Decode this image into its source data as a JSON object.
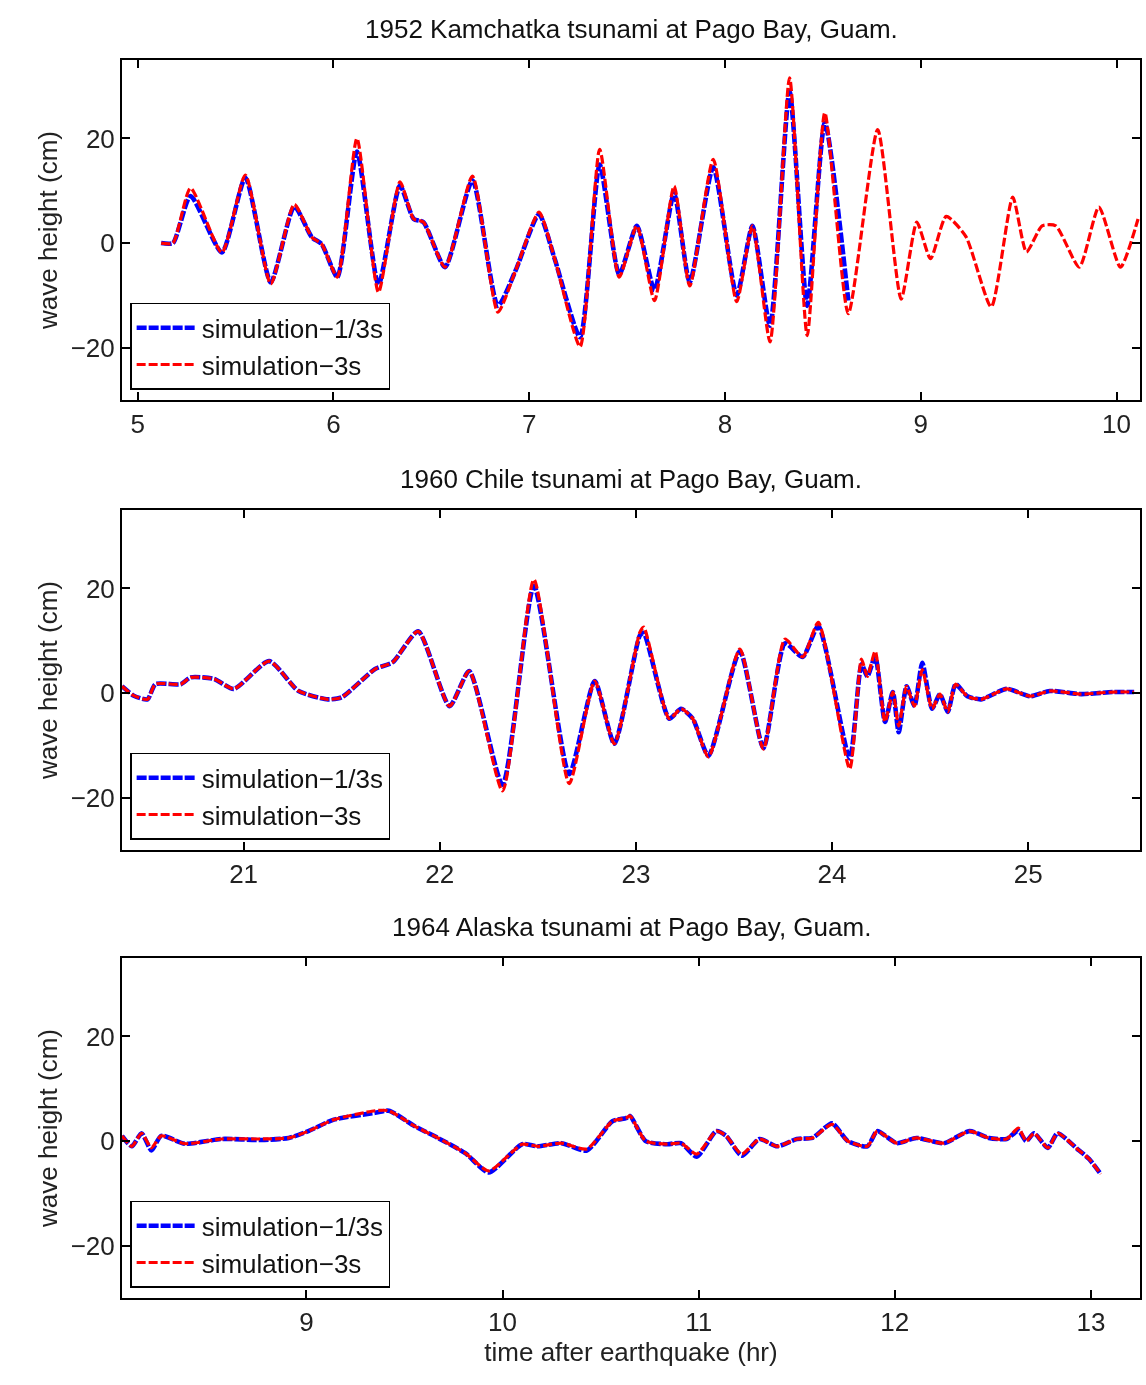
{
  "chart_data": [
    {
      "type": "line",
      "title": "1952 Kamchatka tsunami at Pago Bay, Guam.",
      "ylabel": "wave height (cm)",
      "xlim": [
        4.92,
        10.12
      ],
      "xticks": [
        5,
        6,
        7,
        8,
        9,
        10
      ],
      "ylim": [
        -30,
        35
      ],
      "yticks": [
        -20,
        0,
        20
      ],
      "legend": "bottom left",
      "line_style": "dashed",
      "marker": "none",
      "series": [
        {
          "name": "simulation−1/3s",
          "color": "#0000ff",
          "x": [
            5.12,
            5.18,
            5.27,
            5.43,
            5.55,
            5.68,
            5.8,
            5.89,
            5.94,
            6.02,
            6.12,
            6.23,
            6.34,
            6.41,
            6.46,
            6.57,
            6.71,
            6.84,
            6.93,
            7.05,
            7.13,
            7.26,
            7.36,
            7.46,
            7.55,
            7.64,
            7.74,
            7.82,
            7.94,
            8.06,
            8.14,
            8.23,
            8.33,
            8.42,
            8.51,
            8.63
          ],
          "values": [
            0,
            0,
            9,
            -1.8,
            12.5,
            -7.5,
            7,
            1.1,
            -0.2,
            -6.5,
            17.5,
            -8,
            11,
            4.6,
            4,
            -4.6,
            12,
            -12,
            -5.3,
            5.5,
            -3,
            -18,
            15,
            -6,
            3.3,
            -9,
            9.5,
            -7.5,
            14.5,
            -10,
            3.3,
            -15.8,
            29,
            -12,
            23,
            -11
          ]
        },
        {
          "name": "simulation−3s",
          "color": "#ff0000",
          "x": [
            5.12,
            5.18,
            5.27,
            5.43,
            5.55,
            5.68,
            5.8,
            5.89,
            5.94,
            6.02,
            6.12,
            6.23,
            6.34,
            6.41,
            6.46,
            6.57,
            6.71,
            6.84,
            6.93,
            7.05,
            7.13,
            7.26,
            7.36,
            7.46,
            7.55,
            7.64,
            7.74,
            7.82,
            7.94,
            8.06,
            8.14,
            8.23,
            8.33,
            8.42,
            8.51,
            8.63,
            8.78,
            8.9,
            8.98,
            9.05,
            9.13,
            9.23,
            9.36,
            9.47,
            9.54,
            9.62,
            9.69,
            9.81,
            9.91,
            10.02,
            10.11
          ],
          "values": [
            0,
            0,
            10.5,
            -1.8,
            13,
            -7.8,
            7.4,
            1.1,
            -0.2,
            -6.5,
            20,
            -9.4,
            11.7,
            4.6,
            4,
            -4.6,
            12.8,
            -13.2,
            -5.3,
            5.9,
            -3,
            -19.8,
            17.9,
            -6.5,
            3.3,
            -11,
            10.9,
            -8.2,
            16,
            -11.2,
            3.3,
            -18.9,
            31.6,
            -17.7,
            24.9,
            -13.5,
            21.7,
            -10.7,
            4,
            -3,
            5.1,
            1.3,
            -12.2,
            8.8,
            -1.7,
            3.3,
            3.3,
            -4.6,
            6.9,
            -4.6,
            4.6
          ]
        }
      ]
    },
    {
      "type": "line",
      "title": "1960 Chile tsunami at Pago Bay, Guam.",
      "ylabel": "wave height (cm)",
      "xlim": [
        20.38,
        25.57
      ],
      "xticks": [
        21,
        22,
        23,
        24,
        25
      ],
      "ylim": [
        -30,
        35
      ],
      "yticks": [
        -20,
        0,
        20
      ],
      "legend": "bottom left",
      "line_style": "dashed",
      "marker": "none",
      "series": [
        {
          "name": "simulation−1/3s",
          "color": "#0000ff",
          "x": [
            20.38,
            20.44,
            20.51,
            20.55,
            20.68,
            20.73,
            20.85,
            20.95,
            21.13,
            21.28,
            21.43,
            21.5,
            21.67,
            21.76,
            21.89,
            22.05,
            22.15,
            22.32,
            22.48,
            22.66,
            22.79,
            22.89,
            23.02,
            23.04,
            23.17,
            23.23,
            23.29,
            23.37,
            23.53,
            23.65,
            23.76,
            23.85,
            23.93,
            24.09,
            24.15,
            24.18,
            24.22,
            24.27,
            24.31,
            24.34,
            24.38,
            24.42,
            24.46,
            24.51,
            24.55,
            24.59,
            24.63,
            24.69,
            24.76,
            24.89,
            25.01,
            25.11,
            25.27,
            25.43,
            25.54
          ],
          "values": [
            1.3,
            -0.5,
            -1.2,
            1.7,
            1.7,
            3,
            2.7,
            0.8,
            6.1,
            0.4,
            -1.2,
            -0.8,
            4.6,
            5.9,
            11.8,
            -2.5,
            4.2,
            -17.5,
            20.5,
            -15.5,
            2.3,
            -9.7,
            11,
            11.5,
            -4.9,
            -3,
            -4.9,
            -12,
            8,
            -10.5,
            9.5,
            6.9,
            12.8,
            -12.5,
            5.5,
            3.2,
            7,
            -5.5,
            0.2,
            -7.5,
            1.3,
            -2.5,
            5.8,
            -3,
            -0.2,
            -3.6,
            1.7,
            -0.6,
            -1.2,
            0.8,
            -0.6,
            0.4,
            -0.2,
            0.2,
            0.2
          ]
        },
        {
          "name": "simulation−3s",
          "color": "#ff0000",
          "x": [
            20.38,
            20.44,
            20.51,
            20.55,
            20.68,
            20.73,
            20.85,
            20.95,
            21.13,
            21.28,
            21.43,
            21.5,
            21.67,
            21.76,
            21.89,
            22.05,
            22.15,
            22.32,
            22.48,
            22.66,
            22.79,
            22.89,
            23.02,
            23.04,
            23.17,
            23.23,
            23.29,
            23.37,
            23.53,
            23.65,
            23.76,
            23.85,
            23.93,
            24.09,
            24.15,
            24.18,
            24.22,
            24.27,
            24.31,
            24.34,
            24.38,
            24.42,
            24.46,
            24.51,
            24.55,
            24.59,
            24.63,
            24.69,
            24.76,
            24.89,
            25.01,
            25.11,
            25.27,
            25.43,
            25.54
          ],
          "values": [
            1.3,
            -0.5,
            -1.2,
            1.7,
            1.7,
            3,
            2.7,
            0.8,
            6.1,
            0.4,
            -1.2,
            -0.8,
            4.6,
            5.9,
            11.8,
            -2.5,
            4.2,
            -18.7,
            21.7,
            -17.3,
            2.3,
            -9.7,
            11.6,
            12.6,
            -4.9,
            -3,
            -4.9,
            -12.2,
            8.4,
            -10.7,
            10.3,
            6.9,
            13.5,
            -14.5,
            6.5,
            3.2,
            8,
            -5.5,
            0.2,
            -6.3,
            1.3,
            -2.5,
            4.5,
            -3,
            -0.2,
            -3.6,
            1.7,
            -0.6,
            -1.2,
            0.8,
            -0.6,
            0.4,
            -0.2,
            0.2,
            0.2
          ]
        }
      ]
    },
    {
      "type": "line",
      "title": "1964 Alaska tsunami at Pago Bay, Guam.",
      "xlabel": "time after earthquake (hr)",
      "ylabel": "wave height (cm)",
      "xlim": [
        8.06,
        13.25
      ],
      "xticks": [
        9,
        10,
        11,
        12,
        13
      ],
      "ylim": [
        -30,
        35
      ],
      "yticks": [
        -20,
        0,
        20
      ],
      "legend": "bottom left",
      "line_style": "dashed",
      "marker": "none",
      "series": [
        {
          "name": "simulation−1/3s",
          "color": "#0000ff",
          "x": [
            8.06,
            8.11,
            8.16,
            8.21,
            8.26,
            8.38,
            8.57,
            8.77,
            8.91,
            9.01,
            9.14,
            9.35,
            9.42,
            9.55,
            9.67,
            9.81,
            9.93,
            10.1,
            10.18,
            10.3,
            10.43,
            10.56,
            10.63,
            10.65,
            10.73,
            10.84,
            10.91,
            10.99,
            11.09,
            11.14,
            11.22,
            11.31,
            11.4,
            11.5,
            11.58,
            11.68,
            11.76,
            11.86,
            11.91,
            12.01,
            12.11,
            12.25,
            12.38,
            12.48,
            12.57,
            12.63,
            12.67,
            12.71,
            12.78,
            12.83,
            12.93,
            12.99,
            13.05
          ],
          "values": [
            1,
            -1,
            1.5,
            -1.8,
            1,
            -0.5,
            0.4,
            0.2,
            0.6,
            1.9,
            4.1,
            5.4,
            5.8,
            2.9,
            0.6,
            -2.3,
            -6,
            -0.6,
            -1,
            -0.4,
            -1.8,
            3.8,
            4.4,
            4.8,
            0,
            -0.6,
            -0.4,
            -3,
            1.9,
            1,
            -2.8,
            0.4,
            -1,
            0.4,
            0.6,
            3.4,
            0,
            -1,
            1.9,
            -0.4,
            0.6,
            -0.4,
            1.9,
            0.6,
            0.4,
            2,
            0,
            1.5,
            -1.3,
            1.5,
            -1.5,
            -3.4,
            -6.3
          ]
        },
        {
          "name": "simulation−3s",
          "color": "#ff0000",
          "x": [
            8.06,
            8.11,
            8.16,
            8.21,
            8.26,
            8.38,
            8.57,
            8.77,
            8.91,
            9.01,
            9.14,
            9.35,
            9.42,
            9.55,
            9.67,
            9.81,
            9.93,
            10.1,
            10.18,
            10.3,
            10.43,
            10.56,
            10.63,
            10.65,
            10.73,
            10.84,
            10.91,
            10.99,
            11.09,
            11.14,
            11.22,
            11.31,
            11.4,
            11.5,
            11.58,
            11.68,
            11.76,
            11.86,
            11.91,
            12.01,
            12.11,
            12.25,
            12.38,
            12.48,
            12.57,
            12.63,
            12.67,
            12.71,
            12.78,
            12.83,
            12.93,
            12.99,
            13.05
          ],
          "values": [
            1,
            -1,
            1.5,
            -1.3,
            1,
            -0.5,
            0.4,
            0.4,
            0.6,
            1.9,
            4.1,
            5.8,
            5.8,
            2.9,
            0.6,
            -2.3,
            -5.7,
            -0.6,
            -1,
            -0.4,
            -1.5,
            3.8,
            4.4,
            4.8,
            0,
            -0.6,
            -0.4,
            -2.5,
            1.9,
            1,
            -2.5,
            0.4,
            -1,
            0.4,
            0.6,
            3.2,
            0,
            -1,
            1.9,
            -0.4,
            0.6,
            -0.4,
            1.9,
            0.6,
            0.4,
            2.5,
            0,
            1.5,
            -1.3,
            1.5,
            -1.5,
            -3.4,
            -6.3
          ]
        }
      ]
    }
  ]
}
